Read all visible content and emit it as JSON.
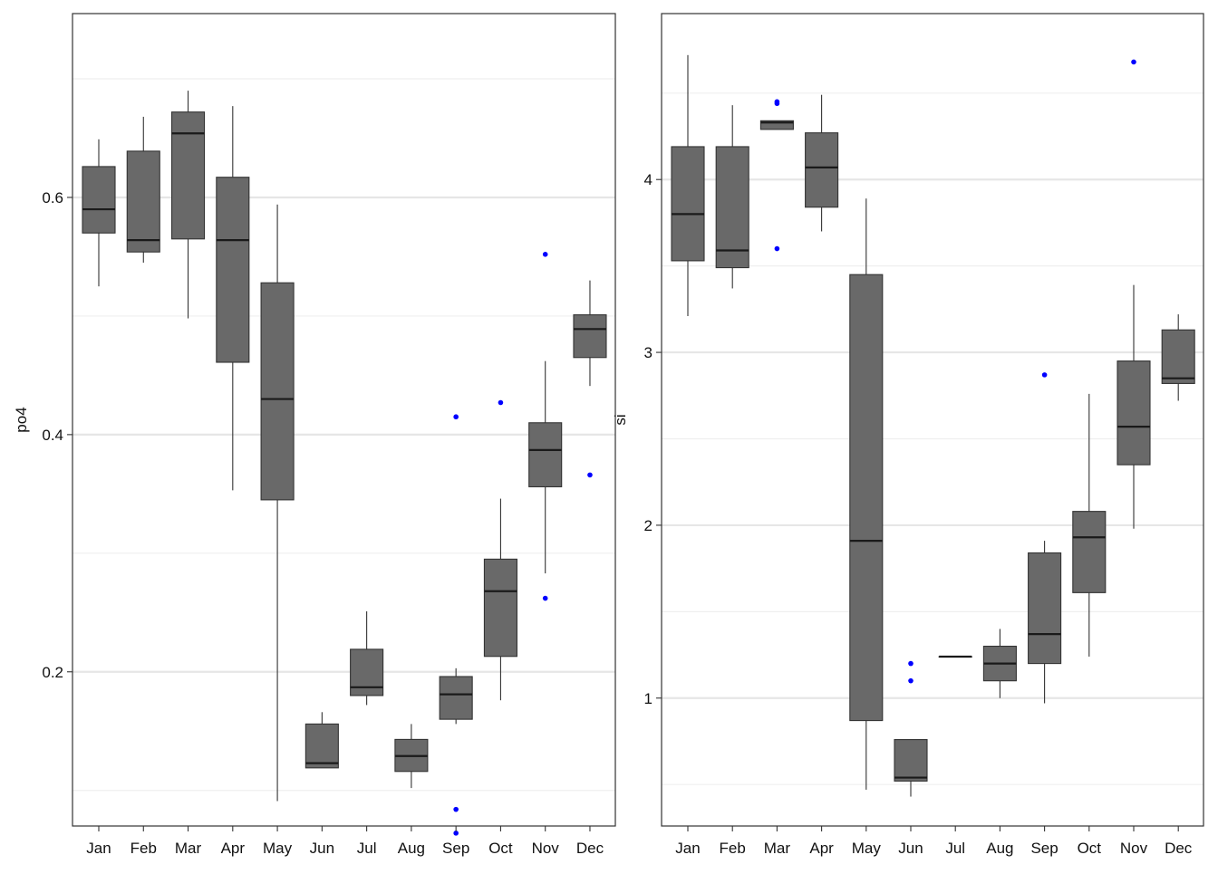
{
  "colors": {
    "box_fill": "#696969",
    "box_stroke": "#333333",
    "median": "#1a1a1a",
    "outlier": "#0000ff",
    "grid_major": "#e6e6e6",
    "grid_minor": "#efefef",
    "panel_border": "#333333"
  },
  "chart_data": [
    {
      "type": "box",
      "xlabel": "",
      "ylabel": "po4",
      "categories": [
        "Jan",
        "Feb",
        "Mar",
        "Apr",
        "May",
        "Jun",
        "Jul",
        "Aug",
        "Sep",
        "Oct",
        "Nov",
        "Dec"
      ],
      "ylim": [
        0.07,
        0.755
      ],
      "yticks": [
        0.2,
        0.4,
        0.6
      ],
      "ytick_labels": [
        "0.2",
        "0.4",
        "0.6"
      ],
      "minor_grid": [
        0.1,
        0.3,
        0.5,
        0.7
      ],
      "grid": true,
      "boxes": [
        {
          "category": "Jan",
          "min": 0.525,
          "q1": 0.57,
          "median": 0.59,
          "q3": 0.626,
          "max": 0.649,
          "outliers": []
        },
        {
          "category": "Feb",
          "min": 0.545,
          "q1": 0.554,
          "median": 0.564,
          "q3": 0.639,
          "max": 0.668,
          "outliers": []
        },
        {
          "category": "Mar",
          "min": 0.498,
          "q1": 0.565,
          "median": 0.654,
          "q3": 0.672,
          "max": 0.69,
          "outliers": []
        },
        {
          "category": "Apr",
          "min": 0.353,
          "q1": 0.461,
          "median": 0.564,
          "q3": 0.617,
          "max": 0.677,
          "outliers": []
        },
        {
          "category": "May",
          "min": 0.091,
          "q1": 0.345,
          "median": 0.43,
          "q3": 0.528,
          "max": 0.594,
          "outliers": []
        },
        {
          "category": "Jun",
          "min": 0.119,
          "q1": 0.119,
          "median": 0.123,
          "q3": 0.156,
          "max": 0.166,
          "outliers": []
        },
        {
          "category": "Jul",
          "min": 0.172,
          "q1": 0.18,
          "median": 0.187,
          "q3": 0.219,
          "max": 0.251,
          "outliers": []
        },
        {
          "category": "Aug",
          "min": 0.102,
          "q1": 0.116,
          "median": 0.129,
          "q3": 0.143,
          "max": 0.156,
          "outliers": []
        },
        {
          "category": "Sep",
          "min": 0.156,
          "q1": 0.16,
          "median": 0.181,
          "q3": 0.196,
          "max": 0.203,
          "outliers": [
            0.415,
            0.084,
            0.064
          ]
        },
        {
          "category": "Oct",
          "min": 0.176,
          "q1": 0.213,
          "median": 0.268,
          "q3": 0.295,
          "max": 0.346,
          "outliers": [
            0.427
          ]
        },
        {
          "category": "Nov",
          "min": 0.283,
          "q1": 0.356,
          "median": 0.387,
          "q3": 0.41,
          "max": 0.462,
          "outliers": [
            0.552,
            0.262
          ]
        },
        {
          "category": "Dec",
          "min": 0.441,
          "q1": 0.465,
          "median": 0.489,
          "q3": 0.501,
          "max": 0.53,
          "outliers": [
            0.366
          ]
        }
      ]
    },
    {
      "type": "box",
      "xlabel": "",
      "ylabel": "si",
      "categories": [
        "Jan",
        "Feb",
        "Mar",
        "Apr",
        "May",
        "Jun",
        "Jul",
        "Aug",
        "Sep",
        "Oct",
        "Nov",
        "Dec"
      ],
      "ylim": [
        0.26,
        4.96
      ],
      "yticks": [
        1,
        2,
        3,
        4
      ],
      "ytick_labels": [
        "1",
        "2",
        "3",
        "4"
      ],
      "minor_grid": [
        0.5,
        1.5,
        2.5,
        3.5,
        4.5
      ],
      "grid": true,
      "boxes": [
        {
          "category": "Jan",
          "min": 3.21,
          "q1": 3.53,
          "median": 3.8,
          "q3": 4.19,
          "max": 4.72,
          "outliers": []
        },
        {
          "category": "Feb",
          "min": 3.37,
          "q1": 3.49,
          "median": 3.59,
          "q3": 4.19,
          "max": 4.43,
          "outliers": []
        },
        {
          "category": "Mar",
          "min": 4.29,
          "q1": 4.29,
          "median": 4.33,
          "q3": 4.34,
          "max": 4.34,
          "outliers": [
            4.45,
            4.44,
            3.6
          ]
        },
        {
          "category": "Apr",
          "min": 3.7,
          "q1": 3.84,
          "median": 4.07,
          "q3": 4.27,
          "max": 4.49,
          "outliers": []
        },
        {
          "category": "May",
          "min": 0.47,
          "q1": 0.87,
          "median": 1.91,
          "q3": 3.45,
          "max": 3.89,
          "outliers": []
        },
        {
          "category": "Jun",
          "min": 0.43,
          "q1": 0.52,
          "median": 0.54,
          "q3": 0.76,
          "max": 0.76,
          "outliers": [
            1.2,
            1.1
          ]
        },
        {
          "category": "Jul",
          "min": 1.24,
          "q1": 1.24,
          "median": 1.24,
          "q3": 1.24,
          "max": 1.24,
          "outliers": []
        },
        {
          "category": "Aug",
          "min": 1.0,
          "q1": 1.1,
          "median": 1.2,
          "q3": 1.3,
          "max": 1.4,
          "outliers": []
        },
        {
          "category": "Sep",
          "min": 0.97,
          "q1": 1.2,
          "median": 1.37,
          "q3": 1.84,
          "max": 1.91,
          "outliers": [
            2.87
          ]
        },
        {
          "category": "Oct",
          "min": 1.24,
          "q1": 1.61,
          "median": 1.93,
          "q3": 2.08,
          "max": 2.76,
          "outliers": []
        },
        {
          "category": "Nov",
          "min": 1.98,
          "q1": 2.35,
          "median": 2.57,
          "q3": 2.95,
          "max": 3.39,
          "outliers": [
            4.68
          ]
        },
        {
          "category": "Dec",
          "min": 2.72,
          "q1": 2.82,
          "median": 2.85,
          "q3": 3.13,
          "max": 3.22,
          "outliers": []
        }
      ]
    }
  ]
}
